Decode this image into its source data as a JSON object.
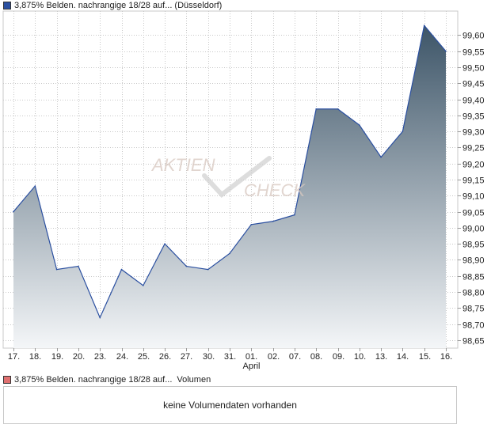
{
  "price_legend": {
    "label": "3,875% Belden. nachrangige 18/28 auf... (Düsseldorf)",
    "color": "#2a4fa0"
  },
  "volume_legend": {
    "label": "3,875% Belden. nachrangige 18/28 auf...",
    "suffix": "Volumen",
    "color": "#e07070"
  },
  "volume_panel": {
    "message": "keine Volumendaten vorhanden"
  },
  "watermark": {
    "line1": "AKTIEN",
    "line2": "CHECK"
  },
  "chart_data": {
    "type": "area",
    "x": [
      "17.",
      "18.",
      "19.",
      "20.",
      "23.",
      "24.",
      "25.",
      "26.",
      "27.",
      "30.",
      "31.",
      "01.",
      "02.",
      "07.",
      "08.",
      "09.",
      "10.",
      "13.",
      "14.",
      "15.",
      "16."
    ],
    "month_label": {
      "at": "01.",
      "text": "April"
    },
    "series": [
      {
        "values": [
          99.05,
          99.13,
          98.87,
          98.88,
          98.72,
          98.87,
          98.82,
          98.95,
          98.88,
          98.87,
          98.92,
          99.01,
          99.02,
          99.04,
          99.37,
          99.37,
          99.32,
          99.22,
          99.3,
          99.63,
          99.55
        ],
        "line_color": "#2a4fa0",
        "fill_top": "#3d5568",
        "fill_bottom": "#f4f6f8"
      }
    ],
    "ylim": [
      98.625,
      99.675
    ],
    "yticks": [
      "98,65",
      "98,70",
      "98,75",
      "98,80",
      "98,85",
      "98,90",
      "98,95",
      "99,00",
      "99,05",
      "99,10",
      "99,15",
      "99,20",
      "99,25",
      "99,30",
      "99,35",
      "99,40",
      "99,45",
      "99,50",
      "99,55",
      "99,60"
    ],
    "ytick_values": [
      98.65,
      98.7,
      98.75,
      98.8,
      98.85,
      98.9,
      98.95,
      99.0,
      99.05,
      99.1,
      99.15,
      99.2,
      99.25,
      99.3,
      99.35,
      99.4,
      99.45,
      99.5,
      99.55,
      99.6
    ],
    "grid": true,
    "y_axis_side": "right",
    "legend": "top-left"
  }
}
